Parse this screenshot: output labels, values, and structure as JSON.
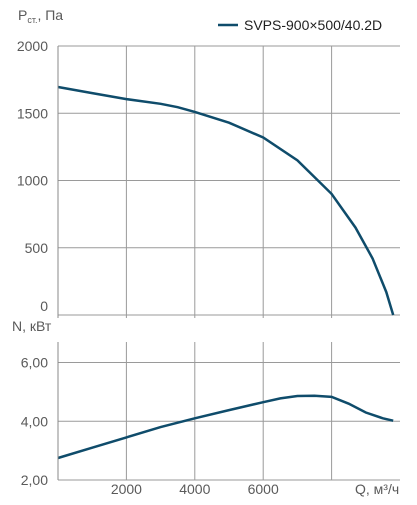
{
  "legend": {
    "label": "SVPS-900×500/40.2D",
    "color": "#0f4c6b"
  },
  "chart_data": [
    {
      "type": "line",
      "title": "",
      "ylabel_main": "P",
      "ylabel_sub": "ст.",
      "ylabel_suffix": ", Па",
      "xlabel": "",
      "xlim": [
        0,
        10000
      ],
      "ylim": [
        0,
        2000
      ],
      "yticks": [
        0,
        500,
        1000,
        1500,
        2000
      ],
      "ytick_labels": [
        "0",
        "500",
        "1000",
        "1500",
        "2000"
      ],
      "xgrid": [
        2000,
        4000,
        6000,
        8000
      ],
      "grid": true,
      "legend_position": "top-right",
      "series": [
        {
          "name": "SVPS-900×500/40.2D",
          "x": [
            0,
            1000,
            2000,
            3000,
            3500,
            4000,
            5000,
            6000,
            7000,
            8000,
            8700,
            9200,
            9600,
            9800
          ],
          "y": [
            1695,
            1650,
            1605,
            1570,
            1545,
            1510,
            1430,
            1320,
            1150,
            900,
            650,
            420,
            170,
            0
          ]
        }
      ]
    },
    {
      "type": "line",
      "title": "",
      "ylabel": "N, кВт",
      "xlabel": "Q, м³/ч",
      "xlim": [
        0,
        10000
      ],
      "ylim": [
        2,
        6.7
      ],
      "yticks": [
        2,
        4,
        6
      ],
      "ytick_labels": [
        "2,00",
        "4,00",
        "6,00"
      ],
      "xticks": [
        2000,
        4000,
        6000
      ],
      "xtick_labels": [
        "2000",
        "4000",
        "6000"
      ],
      "grid": true,
      "series": [
        {
          "name": "SVPS-900×500/40.2D",
          "x": [
            0,
            1000,
            2000,
            3000,
            4000,
            5000,
            6000,
            6500,
            7000,
            7500,
            8000,
            8500,
            9000,
            9500,
            9800
          ],
          "y": [
            2.75,
            3.1,
            3.45,
            3.8,
            4.1,
            4.38,
            4.65,
            4.78,
            4.86,
            4.87,
            4.83,
            4.6,
            4.3,
            4.1,
            4.02
          ]
        }
      ]
    }
  ]
}
